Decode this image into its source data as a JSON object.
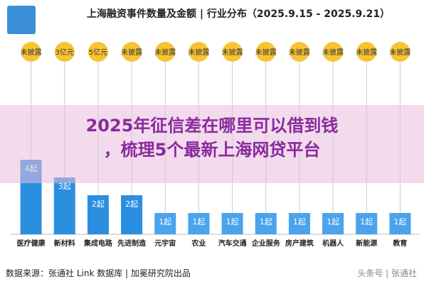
{
  "header": {
    "title": "上海融资事件数量及金额 | 行业分布（2025.9.15 - 2025.9.21）"
  },
  "overlay": {
    "line1": "2025年征信差在哪里可以借到钱",
    "line2": "，梳理5个最新上海网贷平台"
  },
  "footer": {
    "source": "数据来源：张通社 Link 数据库 | 加冕研究院出品",
    "watermark": "头条号 | 张通社"
  },
  "colors": {
    "bar_primary": "#2b8fe0",
    "bar_secondary": "#4aa3ec",
    "circle": "#f6c433",
    "axis": "#bbbbbb"
  },
  "chart_data": {
    "type": "bar",
    "title": "上海融资事件数量及金额 | 行业分布（2025.9.15 - 2025.9.21）",
    "categories": [
      "医疗健康",
      "新材料",
      "集成电路",
      "先进制造",
      "元宇宙",
      "农业",
      "汽车交通",
      "企业服务",
      "房产建筑",
      "机器人",
      "新能源",
      "教育"
    ],
    "values": [
      4,
      3,
      2,
      2,
      1,
      1,
      1,
      1,
      1,
      1,
      1,
      1
    ],
    "value_labels": [
      "4起",
      "3起",
      "2起",
      "2起",
      "1起",
      "1起",
      "1起",
      "1起",
      "1起",
      "1起",
      "1起",
      "1起"
    ],
    "amount_labels": [
      "未披露",
      "3亿元",
      "5亿元",
      "未披露",
      "未披露",
      "未披露",
      "未披露",
      "未披露",
      "未披露",
      "未披露",
      "未披露",
      "未披露"
    ],
    "ylim": [
      0,
      4
    ],
    "legend": "none",
    "grid": false
  }
}
